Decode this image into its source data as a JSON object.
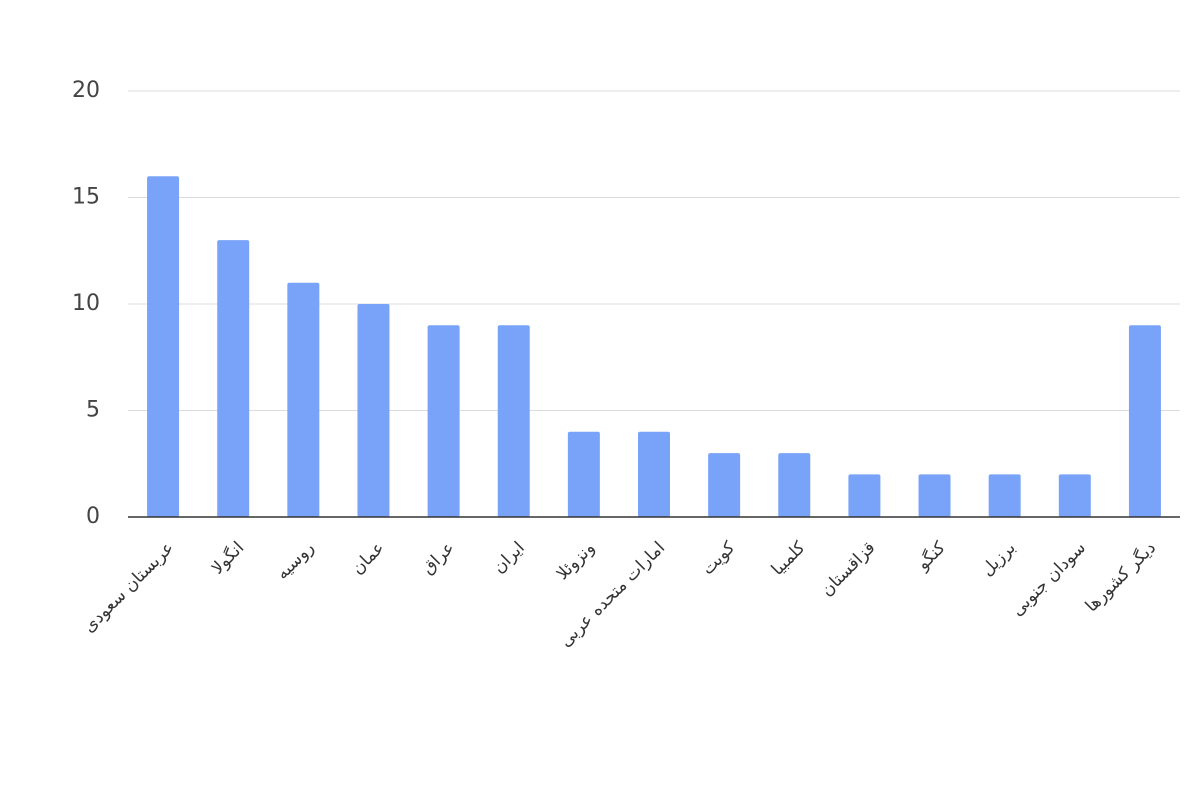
{
  "chart_data": {
    "type": "bar",
    "categories": [
      "عربستان سعودی",
      "انگولا",
      "روسیه",
      "عمان",
      "عراق",
      "ایران",
      "ونزوئلا",
      "امارات متحده عربی",
      "کویت",
      "کلمبیا",
      "قزاقستان",
      "کنگو",
      "برزیل",
      "سودان جنوبی",
      "دیگر کشورها"
    ],
    "values": [
      16,
      13,
      11,
      10,
      9,
      9,
      4,
      4,
      3,
      3,
      2,
      2,
      2,
      2,
      9
    ],
    "color": "#79a3f8",
    "ylim": [
      0,
      20
    ],
    "yticks": [
      0,
      5,
      10,
      15,
      20
    ],
    "grid": true
  }
}
